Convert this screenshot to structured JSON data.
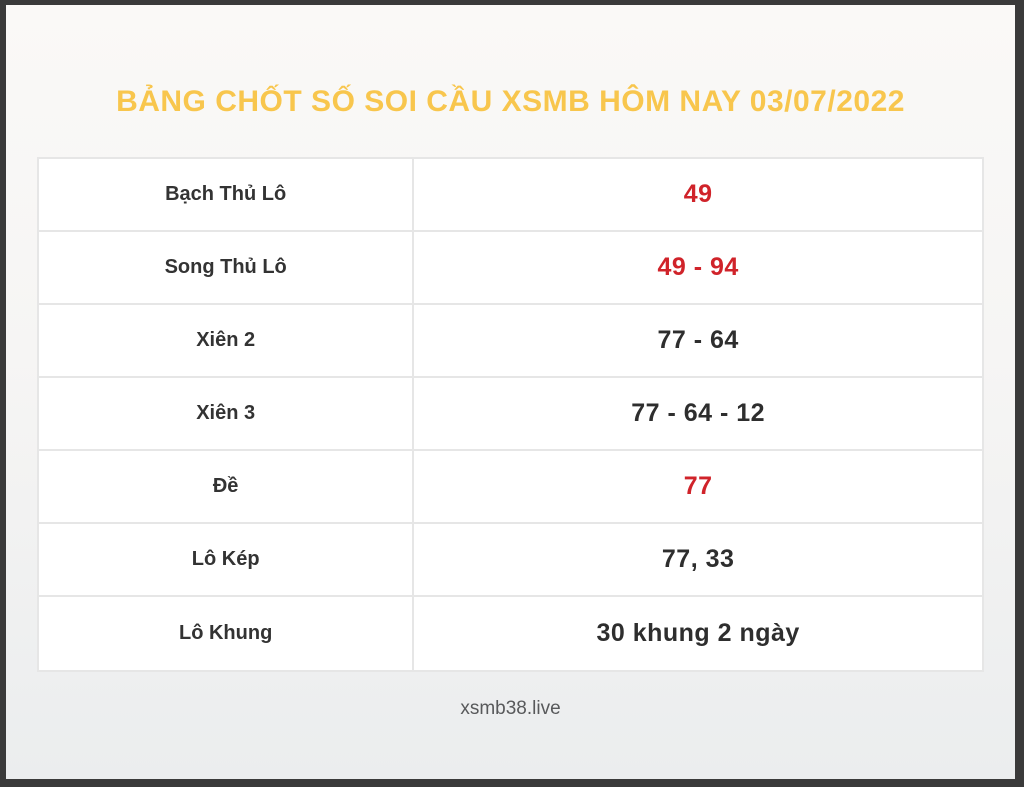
{
  "page": {
    "title": "BẢNG CHỐT SỐ SOI CẦU XSMB HÔM NAY 03/07/2022",
    "footer": "xsmb38.live"
  },
  "colors": {
    "title_gold": "#f8c64d",
    "highlight_red": "#d0232a",
    "text_dark": "#2e2e2e",
    "table_border": "#e6e6e6",
    "frame_dark": "#3a3a3a"
  },
  "table": {
    "rows": [
      {
        "label": "Bạch Thủ Lô",
        "value": "49",
        "emphasis": "red"
      },
      {
        "label": "Song Thủ Lô",
        "value": "49 - 94",
        "emphasis": "red"
      },
      {
        "label": "Xiên 2",
        "value": "77 - 64",
        "emphasis": "dark"
      },
      {
        "label": "Xiên 3",
        "value": "77 - 64 - 12",
        "emphasis": "dark"
      },
      {
        "label": "Đề",
        "value": "77",
        "emphasis": "red"
      },
      {
        "label": "Lô Kép",
        "value": "77, 33",
        "emphasis": "dark"
      },
      {
        "label": "Lô Khung",
        "value": "30 khung 2 ngày",
        "emphasis": "dark"
      }
    ]
  }
}
